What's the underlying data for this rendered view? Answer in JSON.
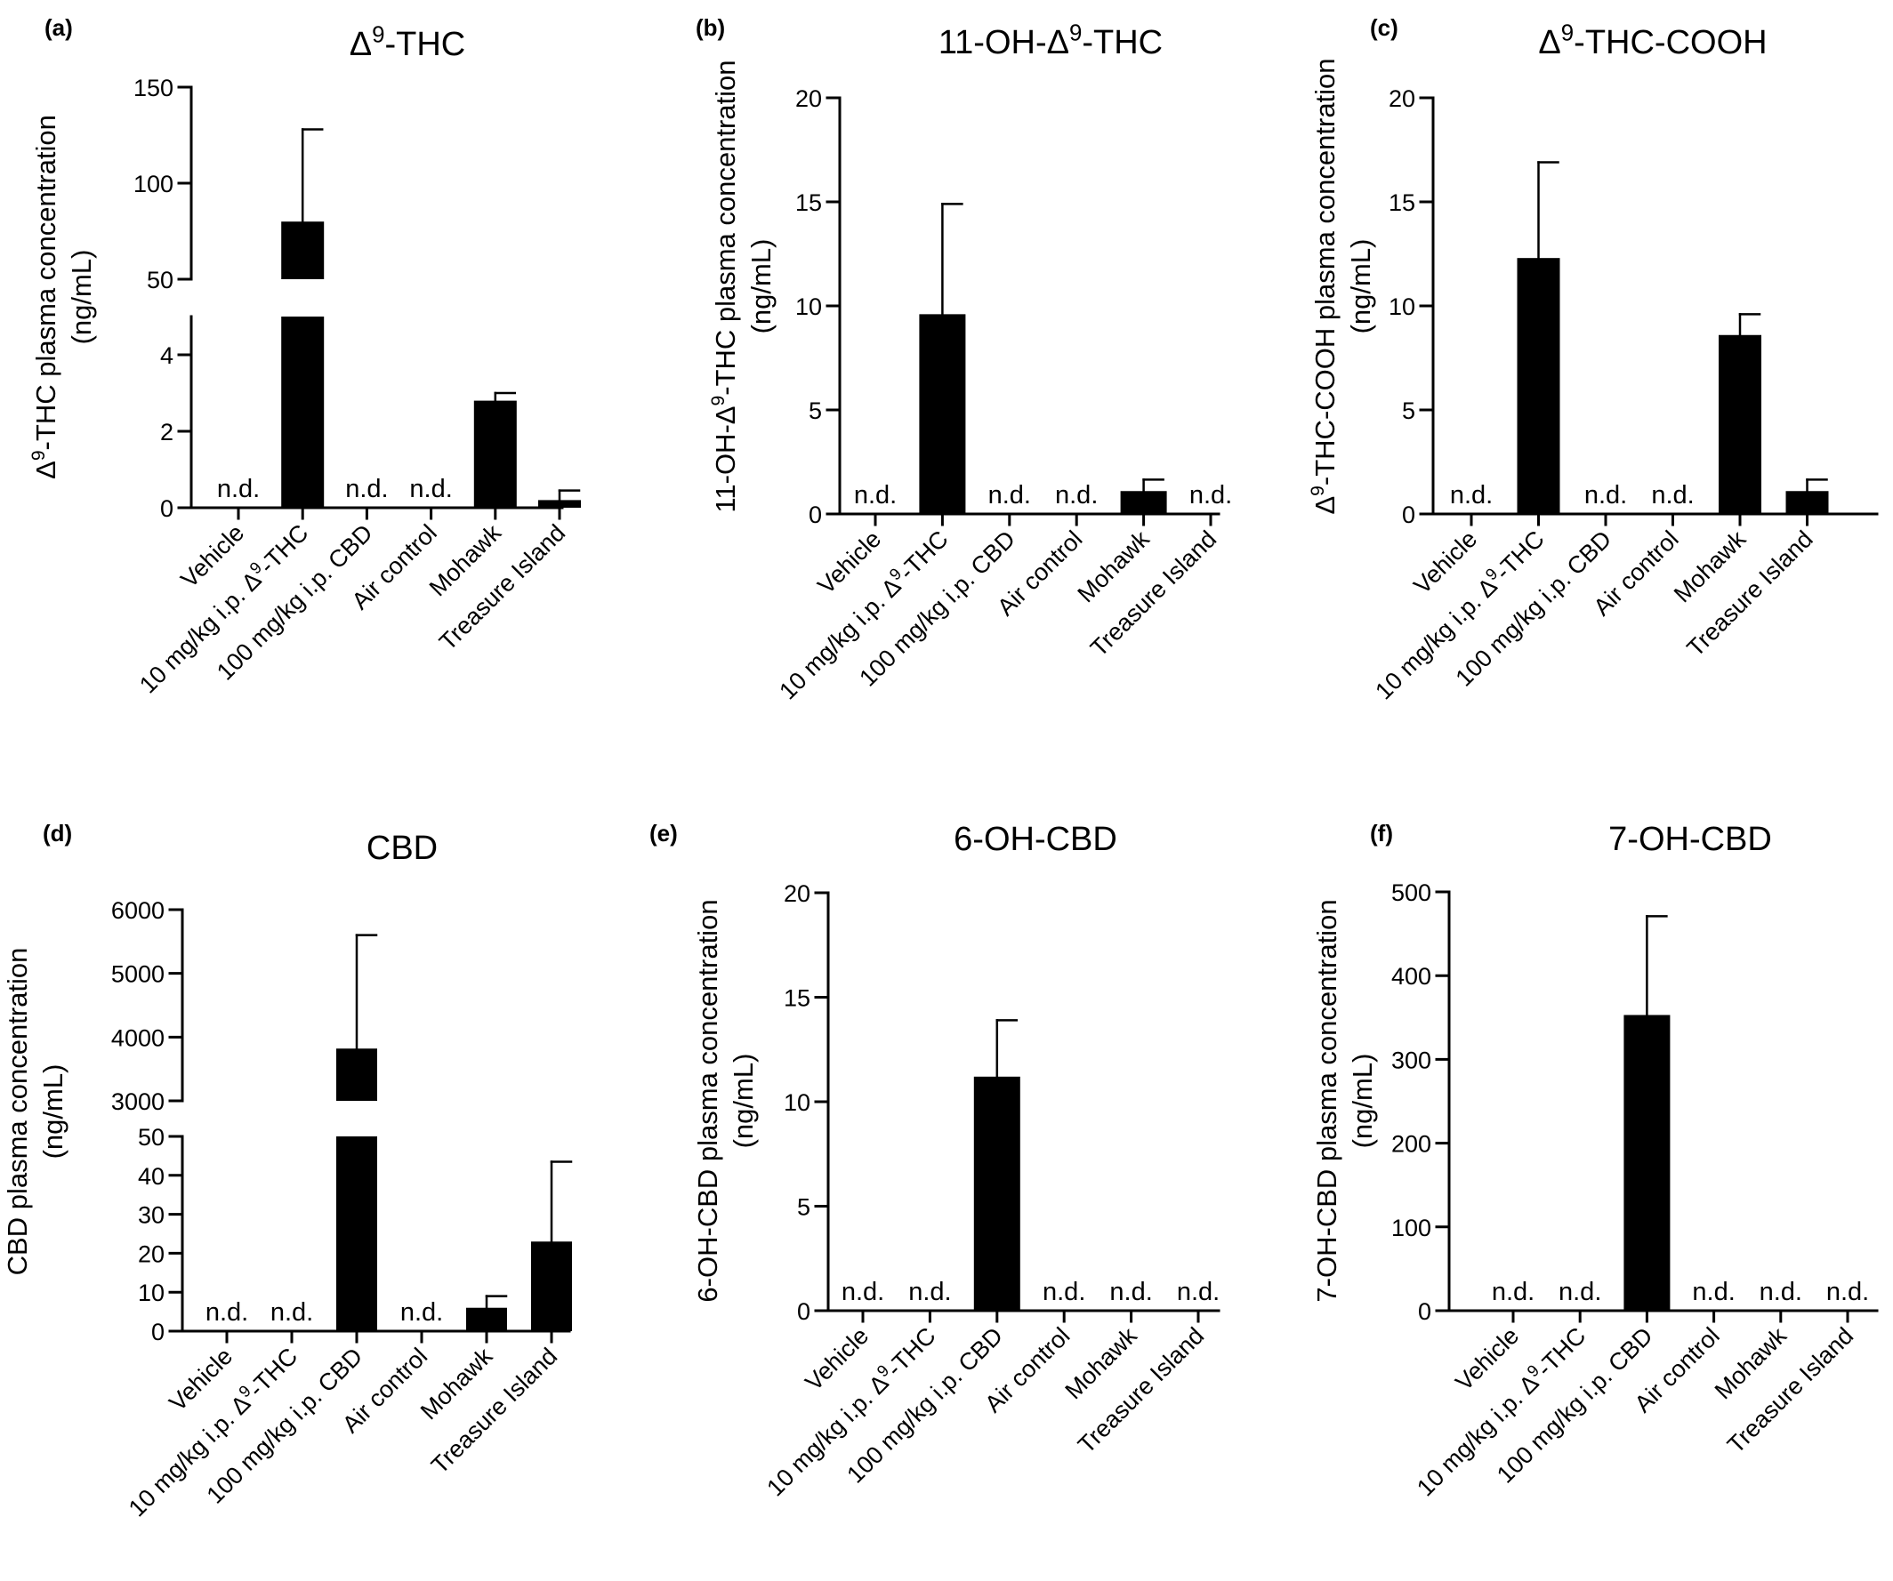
{
  "categories": {
    "vehicle": "Vehicle",
    "thc": "10 mg/kg i.p. Δ⁹-THC",
    "cbd": "100 mg/kg i.p. CBD",
    "air": "Air control",
    "mohawk": "Mohawk",
    "treasure": "Treasure Island"
  },
  "nd_label": "n.d.",
  "chart_data": [
    {
      "panel": "(a)",
      "title": "Δ⁹-THC",
      "ylabel": "Δ⁹-THC plasma concentration",
      "yunit": "(ng/mL)",
      "type": "bar",
      "axis_break": true,
      "lower_ylim": [
        0,
        5
      ],
      "upper_ylim": [
        50,
        150
      ],
      "lower_ticks": [
        0,
        2,
        4
      ],
      "upper_ticks": [
        50,
        100,
        150
      ],
      "categories": [
        "Vehicle",
        "10 mg/kg i.p. Δ⁹-THC",
        "100 mg/kg i.p. CBD",
        "Air control",
        "Mohawk",
        "Treasure Island"
      ],
      "values": [
        null,
        80,
        null,
        null,
        2.8,
        0.2
      ],
      "errors": [
        null,
        48,
        null,
        null,
        0.2,
        0.25
      ],
      "not_detected": [
        true,
        false,
        true,
        true,
        false,
        false
      ]
    },
    {
      "panel": "(b)",
      "title": "11-OH-Δ⁹-THC",
      "ylabel": "11-OH-Δ⁹-THC plasma concentration",
      "yunit": "(ng/mL)",
      "type": "bar",
      "ylim": [
        0,
        20
      ],
      "ticks": [
        0,
        5,
        10,
        15,
        20
      ],
      "categories": [
        "Vehicle",
        "10 mg/kg i.p. Δ⁹-THC",
        "100 mg/kg i.p. CBD",
        "Air control",
        "Mohawk",
        "Treasure Island"
      ],
      "values": [
        null,
        9.6,
        null,
        null,
        1.1,
        null
      ],
      "errors": [
        null,
        5.3,
        null,
        null,
        0.55,
        null
      ],
      "not_detected": [
        true,
        false,
        true,
        true,
        false,
        true
      ]
    },
    {
      "panel": "(c)",
      "title": "Δ⁹-THC-COOH",
      "ylabel": "Δ⁹-THC-COOH plasma concentration",
      "yunit": "(ng/mL)",
      "type": "bar",
      "ylim": [
        0,
        20
      ],
      "ticks": [
        0,
        5,
        10,
        15,
        20
      ],
      "categories": [
        "Vehicle",
        "10 mg/kg i.p. Δ⁹-THC",
        "100 mg/kg i.p. CBD",
        "Air control",
        "Mohawk",
        "Treasure Island"
      ],
      "values": [
        null,
        12.3,
        null,
        null,
        8.6,
        1.1
      ],
      "errors": [
        null,
        4.6,
        null,
        null,
        1.0,
        0.55
      ],
      "not_detected": [
        true,
        false,
        true,
        true,
        false,
        false
      ]
    },
    {
      "panel": "(d)",
      "title": "CBD",
      "ylabel": "CBD plasma concentration",
      "yunit": "(ng/mL)",
      "type": "bar",
      "axis_break": true,
      "lower_ylim": [
        0,
        50
      ],
      "upper_ylim": [
        3000,
        6000
      ],
      "lower_ticks": [
        0,
        10,
        20,
        30,
        40,
        50
      ],
      "upper_ticks": [
        3000,
        4000,
        5000,
        6000
      ],
      "categories": [
        "Vehicle",
        "10 mg/kg i.p. Δ⁹-THC",
        "100 mg/kg i.p. CBD",
        "Air control",
        "Mohawk",
        "Treasure Island"
      ],
      "values": [
        null,
        null,
        3820,
        null,
        6,
        23
      ],
      "errors": [
        null,
        null,
        1780,
        null,
        3,
        20.5
      ],
      "not_detected": [
        true,
        true,
        false,
        true,
        false,
        false
      ]
    },
    {
      "panel": "(e)",
      "title": "6-OH-CBD",
      "ylabel": "6-OH-CBD plasma concentration",
      "yunit": "(ng/mL)",
      "type": "bar",
      "ylim": [
        0,
        20
      ],
      "ticks": [
        0,
        5,
        10,
        15,
        20
      ],
      "categories": [
        "Vehicle",
        "10 mg/kg i.p. Δ⁹-THC",
        "100 mg/kg i.p. CBD",
        "Air control",
        "Mohawk",
        "Treasure Island"
      ],
      "values": [
        null,
        null,
        11.2,
        null,
        null,
        null
      ],
      "errors": [
        null,
        null,
        2.7,
        null,
        null,
        null
      ],
      "not_detected": [
        true,
        true,
        false,
        true,
        true,
        true
      ]
    },
    {
      "panel": "(f)",
      "title": "7-OH-CBD",
      "ylabel": "7-OH-CBD plasma concentration",
      "yunit": "(ng/mL)",
      "type": "bar",
      "ylim": [
        0,
        500
      ],
      "ticks": [
        0,
        100,
        200,
        300,
        400,
        500
      ],
      "categories": [
        "Vehicle",
        "10 mg/kg i.p. Δ⁹-THC",
        "100 mg/kg i.p. CBD",
        "Air control",
        "Mohawk",
        "Treasure Island"
      ],
      "values": [
        null,
        null,
        353,
        null,
        null,
        null
      ],
      "errors": [
        null,
        null,
        118,
        null,
        null,
        null
      ],
      "not_detected": [
        true,
        true,
        false,
        true,
        true,
        true
      ]
    }
  ]
}
